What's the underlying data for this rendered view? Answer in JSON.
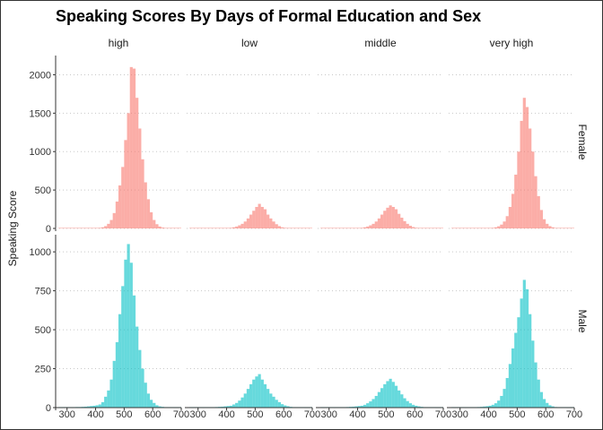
{
  "chart_data": {
    "type": "histogram",
    "title": "Speaking Scores By Days of Formal Education and Sex",
    "xlabel": "",
    "ylabel": "Speaking Score",
    "column_facets": [
      "high",
      "low",
      "middle",
      "very high"
    ],
    "row_facets": [
      "Female",
      "Male"
    ],
    "xlim": [
      260,
      700
    ],
    "x_ticks": [
      300,
      400,
      500,
      600,
      700
    ],
    "bin_width": 10,
    "panel_rows": [
      {
        "facet": "Female",
        "color": "#F8766D",
        "ylim": [
          0,
          2250
        ],
        "y_ticks": [
          0,
          500,
          1000,
          1500,
          2000
        ],
        "panels": [
          {
            "facet": "high",
            "bin_start": 270,
            "counts": [
              0,
              0,
              0,
              0,
              0,
              0,
              0,
              0,
              0,
              0,
              1,
              2,
              3,
              5,
              8,
              15,
              30,
              60,
              110,
              200,
              350,
              560,
              800,
              1150,
              1500,
              2100,
              2080,
              1700,
              1300,
              900,
              600,
              380,
              210,
              110,
              55,
              25,
              12,
              6,
              3,
              2,
              1,
              0,
              0
            ]
          },
          {
            "facet": "low",
            "bin_start": 270,
            "counts": [
              0,
              0,
              0,
              0,
              0,
              0,
              0,
              0,
              0,
              0,
              0,
              1,
              2,
              4,
              8,
              15,
              25,
              40,
              60,
              90,
              130,
              180,
              230,
              280,
              320,
              280,
              250,
              180,
              130,
              90,
              55,
              30,
              15,
              8,
              4,
              2,
              1,
              0,
              0,
              0,
              0,
              0,
              0
            ]
          },
          {
            "facet": "middle",
            "bin_start": 270,
            "counts": [
              0,
              0,
              0,
              0,
              0,
              0,
              0,
              0,
              0,
              0,
              0,
              1,
              2,
              4,
              8,
              15,
              25,
              40,
              60,
              90,
              130,
              180,
              230,
              270,
              300,
              280,
              250,
              190,
              140,
              95,
              60,
              35,
              18,
              9,
              4,
              2,
              1,
              0,
              0,
              0,
              0,
              0,
              0
            ]
          },
          {
            "facet": "very high",
            "bin_start": 270,
            "counts": [
              0,
              0,
              0,
              0,
              0,
              0,
              0,
              0,
              0,
              0,
              1,
              2,
              3,
              5,
              8,
              15,
              28,
              50,
              90,
              160,
              280,
              450,
              700,
              1000,
              1400,
              1700,
              1580,
              1300,
              1000,
              680,
              420,
              240,
              120,
              60,
              30,
              15,
              7,
              3,
              1,
              0,
              0,
              0,
              0
            ]
          }
        ]
      },
      {
        "facet": "Male",
        "color": "#00BFC4",
        "ylim": [
          0,
          1110
        ],
        "y_ticks": [
          0,
          250,
          500,
          750,
          1000
        ],
        "panels": [
          {
            "facet": "high",
            "bin_start": 270,
            "counts": [
              2,
              2,
              2,
              3,
              3,
              3,
              4,
              4,
              5,
              6,
              8,
              10,
              12,
              15,
              20,
              35,
              70,
              110,
              180,
              300,
              420,
              600,
              780,
              950,
              1050,
              930,
              720,
              520,
              370,
              250,
              160,
              90,
              50,
              30,
              15,
              8,
              5,
              3,
              2,
              1,
              1,
              0,
              0
            ]
          },
          {
            "facet": "low",
            "bin_start": 270,
            "counts": [
              1,
              1,
              1,
              1,
              2,
              2,
              2,
              3,
              3,
              4,
              5,
              6,
              8,
              10,
              12,
              20,
              30,
              45,
              65,
              90,
              120,
              150,
              180,
              200,
              215,
              180,
              150,
              120,
              90,
              70,
              50,
              35,
              22,
              14,
              9,
              5,
              3,
              2,
              1,
              1,
              0,
              0,
              0
            ]
          },
          {
            "facet": "middle",
            "bin_start": 270,
            "counts": [
              1,
              1,
              1,
              1,
              2,
              2,
              2,
              3,
              3,
              4,
              5,
              6,
              8,
              10,
              12,
              18,
              28,
              40,
              55,
              75,
              100,
              125,
              150,
              170,
              185,
              165,
              140,
              110,
              85,
              60,
              42,
              28,
              18,
              12,
              8,
              5,
              3,
              2,
              1,
              1,
              0,
              0,
              0
            ]
          },
          {
            "facet": "very high",
            "bin_start": 270,
            "counts": [
              1,
              1,
              1,
              1,
              2,
              2,
              2,
              3,
              3,
              4,
              5,
              7,
              9,
              12,
              18,
              28,
              45,
              75,
              120,
              190,
              280,
              380,
              480,
              580,
              700,
              820,
              760,
              600,
              430,
              290,
              180,
              100,
              55,
              30,
              15,
              8,
              4,
              2,
              1,
              1,
              0,
              0,
              0
            ]
          }
        ]
      }
    ],
    "grid": "horizontal dotted",
    "legend": "none"
  }
}
